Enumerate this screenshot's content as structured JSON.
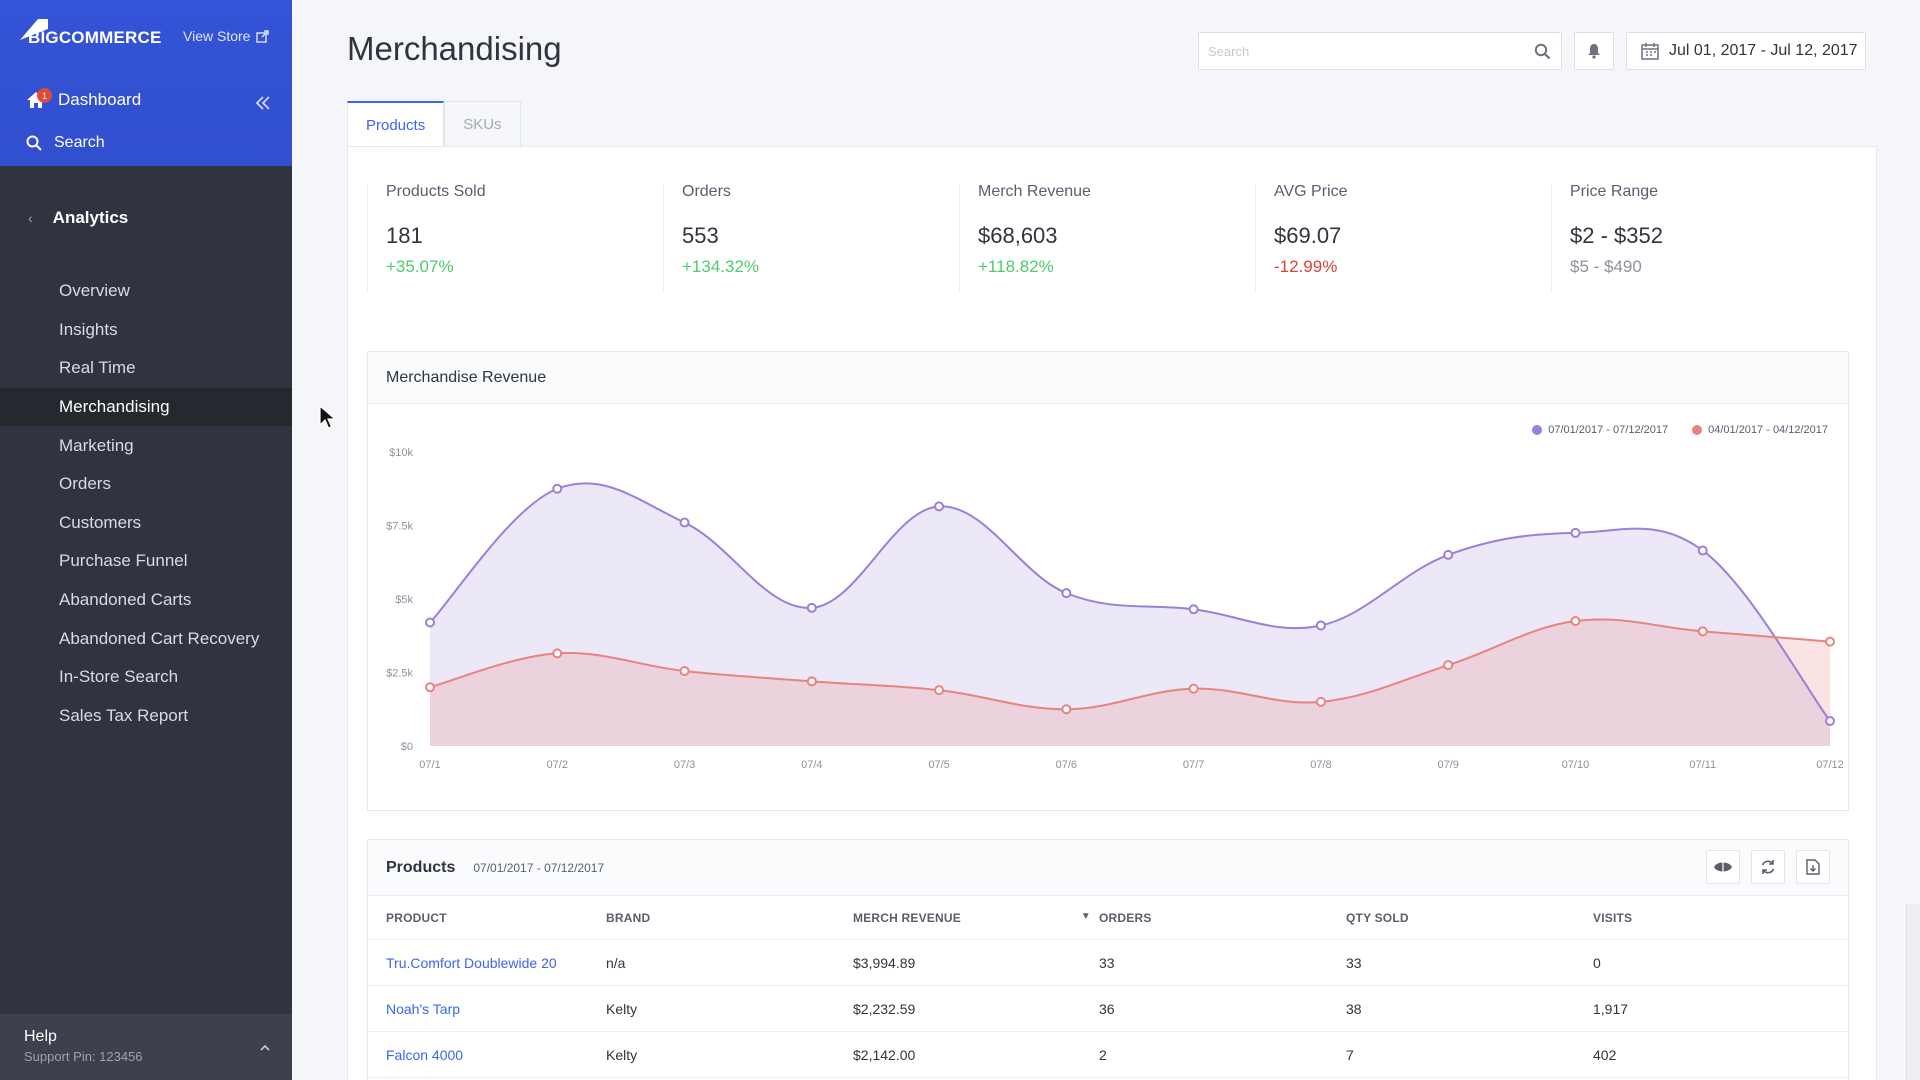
{
  "sidebar": {
    "logo_text": "BIGCOMMERCE",
    "view_store": "View Store",
    "dashboard_label": "Dashboard",
    "dashboard_badge": "1",
    "search_label": "Search",
    "section_title": "Analytics",
    "items": [
      {
        "label": "Overview"
      },
      {
        "label": "Insights"
      },
      {
        "label": "Real Time"
      },
      {
        "label": "Merchandising"
      },
      {
        "label": "Marketing"
      },
      {
        "label": "Orders"
      },
      {
        "label": "Customers"
      },
      {
        "label": "Purchase Funnel"
      },
      {
        "label": "Abandoned Carts"
      },
      {
        "label": "Abandoned Cart Recovery"
      },
      {
        "label": "In-Store Search"
      },
      {
        "label": "Sales Tax Report"
      }
    ],
    "active_item": "Merchandising",
    "help_title": "Help",
    "support_pin": "Support Pin: 123456"
  },
  "header": {
    "title": "Merchandising",
    "search_placeholder": "Search",
    "date_range": "Jul 01, 2017 - Jul 12, 2017"
  },
  "tabs": [
    {
      "label": "Products",
      "active": true
    },
    {
      "label": "SKUs",
      "active": false
    }
  ],
  "stats": [
    {
      "label": "Products Sold",
      "value": "181",
      "change": "+35.07%",
      "trend": "pos"
    },
    {
      "label": "Orders",
      "value": "553",
      "change": "+134.32%",
      "trend": "pos"
    },
    {
      "label": "Merch Revenue",
      "value": "$68,603",
      "change": "+118.82%",
      "trend": "pos"
    },
    {
      "label": "AVG Price",
      "value": "$69.07",
      "change": "-12.99%",
      "trend": "neg"
    },
    {
      "label": "Price Range",
      "value": "$2 - $352",
      "change": "$5 - $490",
      "trend": "muted"
    }
  ],
  "chart_card_title": "Merchandise Revenue",
  "chart_data": {
    "type": "area",
    "categories": [
      "07/1",
      "07/2",
      "07/3",
      "07/4",
      "07/5",
      "07/6",
      "07/7",
      "07/8",
      "07/9",
      "07/10",
      "07/11",
      "07/12"
    ],
    "series": [
      {
        "name": "07/01/2017 - 07/12/2017",
        "color": "#9b7fd9",
        "values": [
          4200,
          8750,
          7600,
          4700,
          8150,
          5200,
          4650,
          4100,
          6500,
          7250,
          6650,
          850
        ]
      },
      {
        "name": "04/01/2017 - 04/12/2017",
        "color": "#e8837f",
        "values": [
          2000,
          3150,
          2550,
          2200,
          1900,
          1250,
          1950,
          1500,
          2750,
          4250,
          3900,
          3550
        ]
      }
    ],
    "y_ticks": [
      "$0",
      "$2.5k",
      "$5k",
      "$7.5k",
      "$10k"
    ],
    "ylim": [
      0,
      10000
    ],
    "legend_position": "top-right"
  },
  "products_table": {
    "title": "Products",
    "date_range": "07/01/2017 - 07/12/2017",
    "columns": [
      "PRODUCT",
      "BRAND",
      "MERCH REVENUE",
      "ORDERS",
      "QTY SOLD",
      "VISITS"
    ],
    "rows": [
      {
        "product": "Tru.Comfort Doublewide 20",
        "brand": "n/a",
        "revenue": "$3,994.89",
        "orders": "33",
        "qty": "33",
        "visits": "0"
      },
      {
        "product": "Noah's Tarp",
        "brand": "Kelty",
        "revenue": "$2,232.59",
        "orders": "36",
        "qty": "38",
        "visits": "1,917"
      },
      {
        "product": "Falcon 4000",
        "brand": "Kelty",
        "revenue": "$2,142.00",
        "orders": "2",
        "qty": "7",
        "visits": "402"
      }
    ]
  }
}
